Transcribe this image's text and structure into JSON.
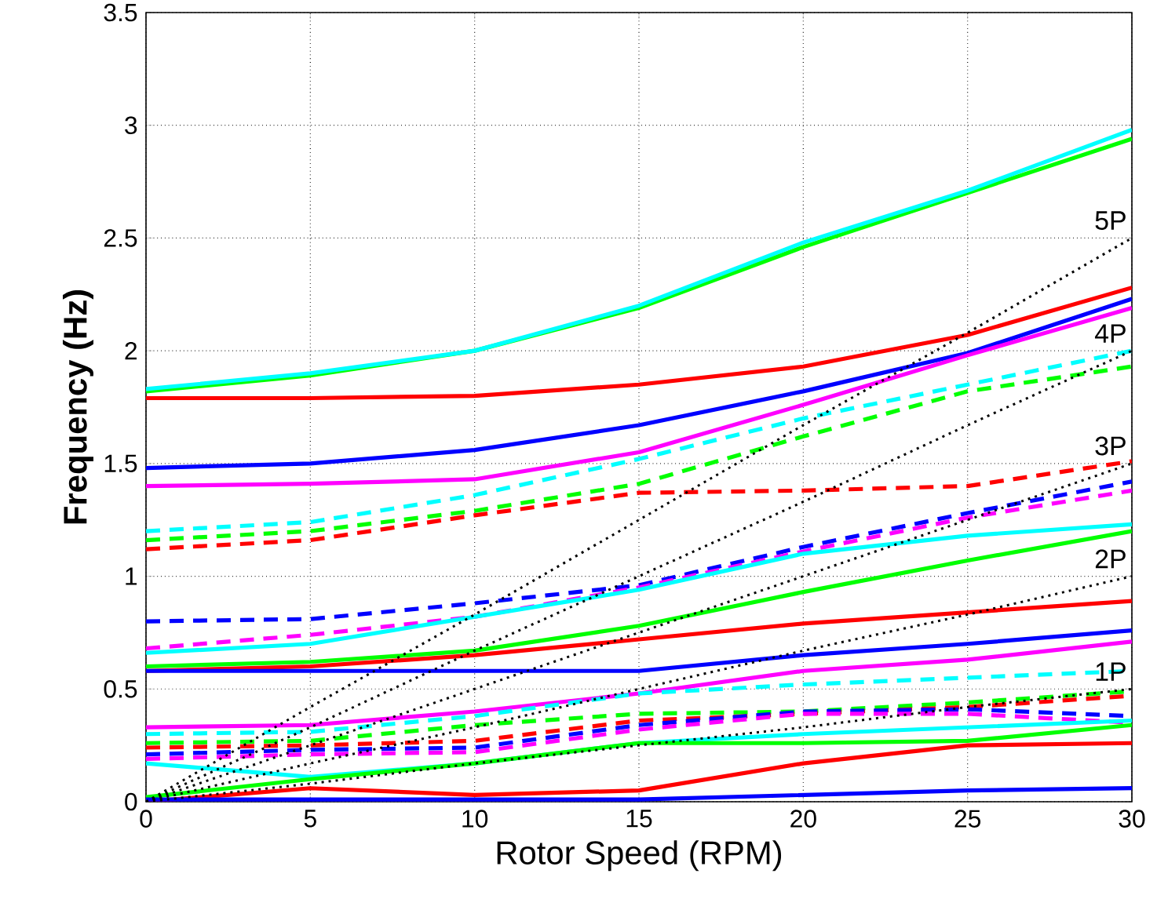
{
  "chart_data": {
    "type": "line",
    "xlabel": "Rotor Speed (RPM)",
    "ylabel": "Frequency (Hz)",
    "x": [
      0,
      5,
      10,
      15,
      20,
      25,
      30
    ],
    "xlim": [
      0,
      30
    ],
    "ylim": [
      0,
      3.5
    ],
    "xticks": [
      0,
      5,
      10,
      15,
      20,
      25,
      30
    ],
    "yticks": [
      0,
      0.5,
      1,
      1.5,
      2,
      2.5,
      3,
      3.5
    ],
    "grid": true,
    "marker": "none",
    "series": [
      {
        "color": "#00ff00",
        "line_style": "solid",
        "values": [
          1.82,
          1.89,
          2.0,
          2.19,
          2.46,
          2.7,
          2.94
        ]
      },
      {
        "color": "#00ffff",
        "line_style": "solid",
        "values": [
          1.83,
          1.9,
          2.0,
          2.2,
          2.48,
          2.71,
          2.98
        ]
      },
      {
        "color": "#ff0000",
        "line_style": "solid",
        "values": [
          1.79,
          1.79,
          1.8,
          1.85,
          1.93,
          2.07,
          2.28
        ]
      },
      {
        "color": "#0000ff",
        "line_style": "solid",
        "values": [
          1.48,
          1.5,
          1.56,
          1.67,
          1.82,
          1.99,
          2.23
        ]
      },
      {
        "color": "#ff00ff",
        "line_style": "solid",
        "values": [
          1.4,
          1.41,
          1.43,
          1.55,
          1.76,
          1.98,
          2.19
        ]
      },
      {
        "color": "#00ffff",
        "line_style": "dashed",
        "values": [
          1.2,
          1.24,
          1.36,
          1.52,
          1.7,
          1.85,
          2.0
        ]
      },
      {
        "color": "#00ff00",
        "line_style": "dashed",
        "values": [
          1.16,
          1.2,
          1.29,
          1.41,
          1.62,
          1.82,
          1.93
        ]
      },
      {
        "color": "#ff0000",
        "line_style": "dashed",
        "values": [
          1.12,
          1.16,
          1.27,
          1.37,
          1.38,
          1.4,
          1.51
        ]
      },
      {
        "color": "#0000ff",
        "line_style": "dashed",
        "values": [
          0.8,
          0.81,
          0.88,
          0.96,
          1.13,
          1.28,
          1.42
        ]
      },
      {
        "color": "#ff00ff",
        "line_style": "dashed",
        "values": [
          0.68,
          0.74,
          0.82,
          0.95,
          1.11,
          1.26,
          1.38
        ]
      },
      {
        "color": "#00ffff",
        "line_style": "solid",
        "values": [
          0.66,
          0.7,
          0.82,
          0.94,
          1.1,
          1.18,
          1.23
        ]
      },
      {
        "color": "#00ff00",
        "line_style": "solid",
        "values": [
          0.6,
          0.62,
          0.67,
          0.78,
          0.93,
          1.07,
          1.2
        ]
      },
      {
        "color": "#ff0000",
        "line_style": "solid",
        "values": [
          0.58,
          0.6,
          0.65,
          0.72,
          0.79,
          0.84,
          0.89
        ]
      },
      {
        "color": "#0000ff",
        "line_style": "solid",
        "values": [
          0.58,
          0.58,
          0.58,
          0.58,
          0.65,
          0.7,
          0.76
        ]
      },
      {
        "color": "#ff00ff",
        "line_style": "solid",
        "values": [
          0.33,
          0.34,
          0.4,
          0.48,
          0.58,
          0.63,
          0.71
        ]
      },
      {
        "color": "#00ffff",
        "line_style": "dashed",
        "values": [
          0.3,
          0.31,
          0.38,
          0.48,
          0.52,
          0.55,
          0.58
        ]
      },
      {
        "color": "#00ff00",
        "line_style": "dashed",
        "values": [
          0.26,
          0.27,
          0.34,
          0.39,
          0.4,
          0.44,
          0.49
        ]
      },
      {
        "color": "#ff0000",
        "line_style": "dashed",
        "values": [
          0.24,
          0.25,
          0.27,
          0.36,
          0.39,
          0.42,
          0.47
        ]
      },
      {
        "color": "#0000ff",
        "line_style": "dashed",
        "values": [
          0.21,
          0.23,
          0.24,
          0.34,
          0.4,
          0.41,
          0.38
        ]
      },
      {
        "color": "#ff00ff",
        "line_style": "dashed",
        "values": [
          0.19,
          0.21,
          0.22,
          0.32,
          0.39,
          0.39,
          0.35
        ]
      },
      {
        "color": "#00ffff",
        "line_style": "solid",
        "values": [
          0.17,
          0.11,
          0.17,
          0.26,
          0.3,
          0.33,
          0.36
        ]
      },
      {
        "color": "#00ff00",
        "line_style": "solid",
        "values": [
          0.02,
          0.1,
          0.17,
          0.26,
          0.26,
          0.27,
          0.34
        ]
      },
      {
        "color": "#ff0000",
        "line_style": "solid",
        "values": [
          0.0,
          0.06,
          0.03,
          0.05,
          0.17,
          0.25,
          0.26
        ]
      },
      {
        "color": "#0000ff",
        "line_style": "solid",
        "values": [
          0.01,
          0.01,
          0.01,
          0.01,
          0.03,
          0.05,
          0.06
        ]
      },
      {
        "name": "1P",
        "color": "#000000",
        "line_style": "dotted",
        "values": [
          0,
          0.08,
          0.17,
          0.25,
          0.33,
          0.42,
          0.5
        ]
      },
      {
        "name": "2P",
        "color": "#000000",
        "line_style": "dotted",
        "values": [
          0,
          0.17,
          0.33,
          0.5,
          0.67,
          0.83,
          1.0
        ]
      },
      {
        "name": "3P",
        "color": "#000000",
        "line_style": "dotted",
        "values": [
          0,
          0.25,
          0.5,
          0.75,
          1.0,
          1.25,
          1.5
        ]
      },
      {
        "name": "4P",
        "color": "#000000",
        "line_style": "dotted",
        "values": [
          0,
          0.33,
          0.67,
          1.0,
          1.33,
          1.67,
          2.0
        ]
      },
      {
        "name": "5P",
        "color": "#000000",
        "line_style": "dotted",
        "values": [
          0,
          0.42,
          0.83,
          1.25,
          1.67,
          2.08,
          2.5
        ]
      }
    ]
  }
}
